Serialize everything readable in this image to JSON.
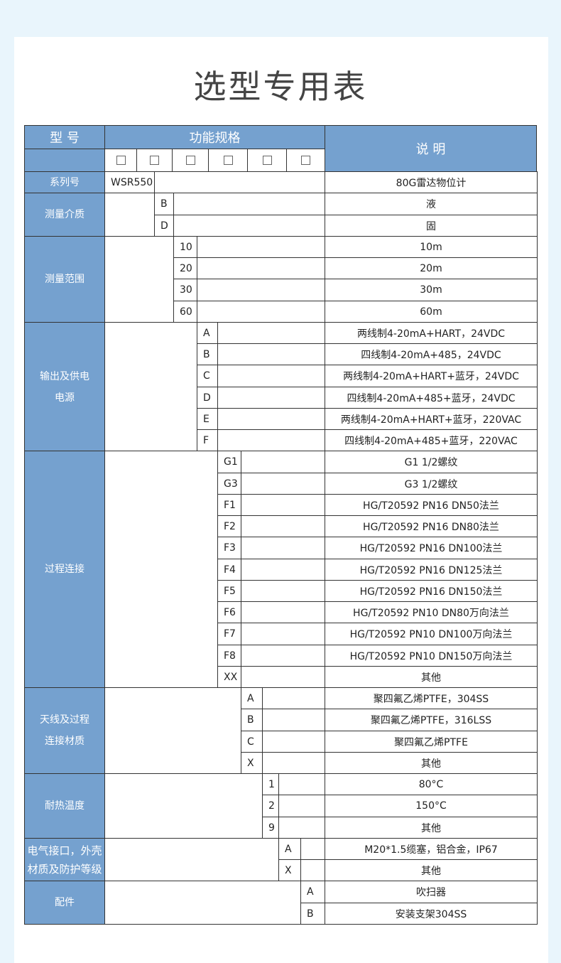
{
  "title": "选型专用表",
  "header": {
    "model": "型 号",
    "function": "功能规格",
    "desc": "说 明",
    "placeholders": [
      "□",
      "□",
      "□",
      "□",
      "□",
      "□"
    ]
  },
  "groups": [
    {
      "label": "系列号",
      "rows": [
        {
          "code": "WSR550",
          "desc": "80G雷达物位计"
        }
      ]
    },
    {
      "label": "测量介质",
      "rows": [
        {
          "code": "B",
          "desc": "液"
        },
        {
          "code": "D",
          "desc": "固"
        }
      ]
    },
    {
      "label": "测量范围",
      "rows": [
        {
          "code": "10",
          "desc": "10m"
        },
        {
          "code": "20",
          "desc": "20m"
        },
        {
          "code": "30",
          "desc": "30m"
        },
        {
          "code": "60",
          "desc": "60m"
        }
      ]
    },
    {
      "label": "输出及供电\n电源",
      "rows": [
        {
          "code": "A",
          "desc": "两线制4-20mA+HART，24VDC"
        },
        {
          "code": "B",
          "desc": "四线制4-20mA+485，24VDC"
        },
        {
          "code": "C",
          "desc": "两线制4-20mA+HART+蓝牙，24VDC"
        },
        {
          "code": "D",
          "desc": "四线制4-20mA+485+蓝牙，24VDC"
        },
        {
          "code": "E",
          "desc": "两线制4-20mA+HART+蓝牙，220VAC"
        },
        {
          "code": "F",
          "desc": "四线制4-20mA+485+蓝牙，220VAC"
        }
      ]
    },
    {
      "label": "过程连接",
      "rows": [
        {
          "code": "G1",
          "desc": "G1 1/2螺纹"
        },
        {
          "code": "G3",
          "desc": "G3 1/2螺纹"
        },
        {
          "code": "F1",
          "desc": "HG/T20592 PN16 DN50法兰"
        },
        {
          "code": "F2",
          "desc": "HG/T20592 PN16 DN80法兰"
        },
        {
          "code": "F3",
          "desc": "HG/T20592 PN16 DN100法兰"
        },
        {
          "code": "F4",
          "desc": "HG/T20592 PN16 DN125法兰"
        },
        {
          "code": "F5",
          "desc": "HG/T20592 PN16 DN150法兰"
        },
        {
          "code": "F6",
          "desc": "HG/T20592 PN10 DN80万向法兰"
        },
        {
          "code": "F7",
          "desc": "HG/T20592 PN10 DN100万向法兰"
        },
        {
          "code": "F8",
          "desc": "HG/T20592 PN10 DN150万向法兰"
        },
        {
          "code": "XX",
          "desc": "其他"
        }
      ]
    },
    {
      "label": "天线及过程\n连接材质",
      "rows": [
        {
          "code": "A",
          "desc": "聚四氟乙烯PTFE，304SS"
        },
        {
          "code": "B",
          "desc": "聚四氟乙烯PTFE，316LSS"
        },
        {
          "code": "C",
          "desc": "聚四氟乙烯PTFE"
        },
        {
          "code": "X",
          "desc": "其他"
        }
      ]
    },
    {
      "label": "耐热温度",
      "rows": [
        {
          "code": "1",
          "desc": "80°C"
        },
        {
          "code": "2",
          "desc": "150°C"
        },
        {
          "code": "9",
          "desc": "其他"
        }
      ]
    },
    {
      "label": "电气接口，外壳\n材质及防护等级",
      "rows": [
        {
          "code": "A",
          "desc": "M20*1.5缆塞，铝合金，IP67"
        },
        {
          "code": "X",
          "desc": "其他"
        }
      ]
    },
    {
      "label": "配件",
      "rows": [
        {
          "code": "A",
          "desc": "吹扫器"
        },
        {
          "code": "B",
          "desc": "安装支架304SS"
        }
      ]
    }
  ]
}
